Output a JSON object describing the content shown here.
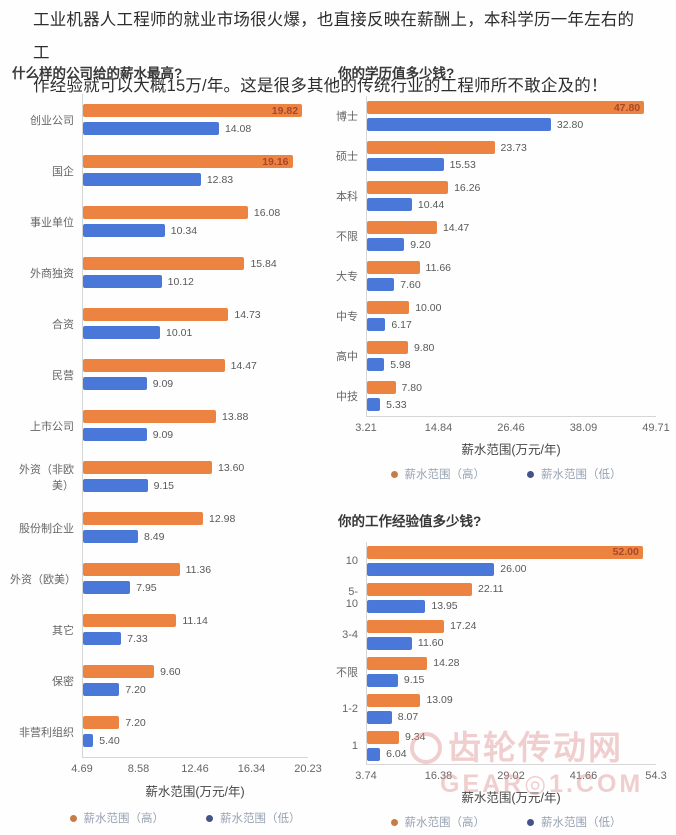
{
  "header": {
    "text": "工业机器人工程师的就业市场很火爆，也直接反映在薪酬上，本科学历一年左右的工\n作经验就可以大概15万/年。这是很多其他的传统行业的工程师所不敢企及的！"
  },
  "colors": {
    "high": "#EC8340",
    "low": "#4A78D9",
    "inside_label": "#A8472B"
  },
  "chart_data": [
    {
      "type": "bar",
      "orientation": "horizontal",
      "title": "什么样的公司给的薪水最高?",
      "categories": [
        "创业公司",
        "国企",
        "事业单位",
        "外商独资",
        "合资",
        "民营",
        "上市公司",
        "外资（非欧美）",
        "股份制企业",
        "外资（欧美）",
        "其它",
        "保密",
        "非营利组织"
      ],
      "series": [
        {
          "name": "薪水范围（高）",
          "values": [
            "19.82",
            "19.16",
            "16.08",
            "15.84",
            "14.73",
            "14.47",
            "13.88",
            "13.60",
            "12.98",
            "11.36",
            "11.14",
            "9.60",
            "7.20"
          ]
        },
        {
          "name": "薪水范围（低）",
          "values": [
            "14.08",
            "12.83",
            "10.34",
            "10.12",
            "10.01",
            "9.09",
            "9.09",
            "9.15",
            "8.49",
            "7.95",
            "7.33",
            "7.20",
            "5.40"
          ]
        }
      ],
      "ticks": [
        "4.69",
        "8.58",
        "12.46",
        "16.34",
        "20.23"
      ],
      "axis_range": [
        4.69,
        20.23
      ],
      "xlabel": "薪水范围(万元/年)",
      "legend": {
        "high": "薪水范围（高）",
        "low": "薪水范围（低）"
      },
      "grid": false,
      "legend_position": "bottom"
    },
    {
      "type": "bar",
      "orientation": "horizontal",
      "title": "你的学历值多少钱?",
      "categories": [
        "博士",
        "硕士",
        "本科",
        "不限",
        "大专",
        "中专",
        "高中",
        "中技"
      ],
      "series": [
        {
          "name": "薪水范围（高）",
          "values": [
            "47.80",
            "23.73",
            "16.26",
            "14.47",
            "11.66",
            "10.00",
            "9.80",
            "7.80"
          ]
        },
        {
          "name": "薪水范围（低）",
          "values": [
            "32.80",
            "15.53",
            "10.44",
            "9.20",
            "7.60",
            "6.17",
            "5.98",
            "5.33"
          ]
        }
      ],
      "ticks": [
        "3.21",
        "14.84",
        "26.46",
        "38.09",
        "49.71"
      ],
      "axis_range": [
        3.21,
        49.71
      ],
      "xlabel": "薪水范围(万元/年)",
      "legend": {
        "high": "薪水范围（高）",
        "low": "薪水范围（低）"
      },
      "grid": false,
      "legend_position": "bottom"
    },
    {
      "type": "bar",
      "orientation": "horizontal",
      "title": "你的工作经验值多少钱?",
      "categories": [
        "10",
        "5-10",
        "3-4",
        "不限",
        "1-2",
        "1"
      ],
      "series": [
        {
          "name": "薪水范围（高）",
          "values": [
            "52.00",
            "22.11",
            "17.24",
            "14.28",
            "13.09",
            "9.34"
          ]
        },
        {
          "name": "薪水范围（低）",
          "values": [
            "26.00",
            "13.95",
            "11.60",
            "9.15",
            "8.07",
            "6.04"
          ]
        }
      ],
      "ticks": [
        "3.74",
        "16.38",
        "29.02",
        "41.66",
        "54.3"
      ],
      "axis_range": [
        3.74,
        54.3
      ],
      "xlabel": "薪水范围(万元/年)",
      "legend": {
        "high": "薪水范围（高）",
        "low": "薪水范围（低）"
      },
      "grid": false,
      "legend_position": "bottom"
    }
  ],
  "watermark": {
    "line1": "齿轮传动网",
    "line2": "GEAR◎1.COM"
  }
}
